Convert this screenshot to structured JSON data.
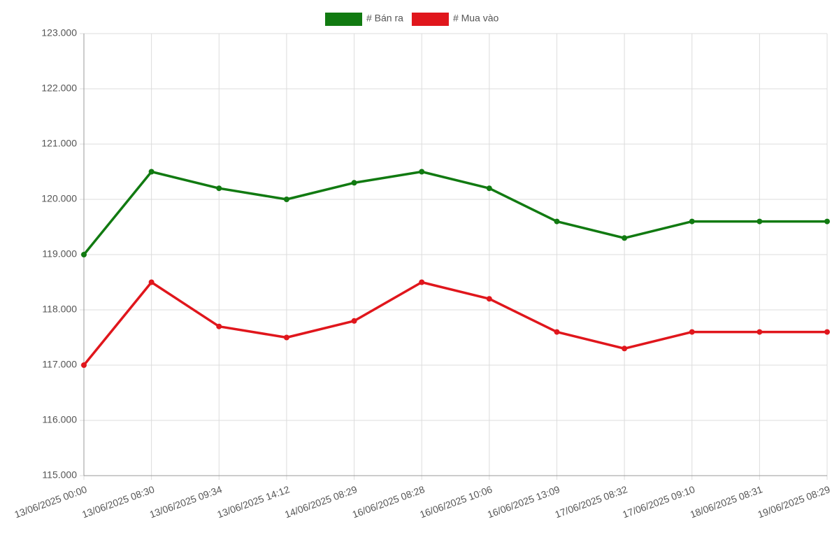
{
  "chart_data": {
    "type": "line",
    "categories": [
      "13/06/2025 00:00",
      "13/06/2025 08:30",
      "13/06/2025 09:34",
      "13/06/2025 14:12",
      "14/06/2025 08:29",
      "16/06/2025 08:28",
      "16/06/2025 10:06",
      "16/06/2025 13:09",
      "17/06/2025 08:32",
      "17/06/2025 09:10",
      "18/06/2025 08:31",
      "19/06/2025 08:29"
    ],
    "series": [
      {
        "name": "# Bán ra",
        "color": "#117a11",
        "values": [
          119000,
          120500,
          120200,
          120000,
          120300,
          120500,
          120200,
          119600,
          119300,
          119600,
          119600,
          119600
        ]
      },
      {
        "name": "# Mua vào",
        "color": "#e0161c",
        "values": [
          117000,
          118500,
          117700,
          117500,
          117800,
          118500,
          118200,
          117600,
          117300,
          117600,
          117600,
          117600
        ]
      }
    ],
    "ylim": [
      115000,
      123000
    ],
    "yticks": [
      {
        "value": 115000,
        "label": "115.000"
      },
      {
        "value": 116000,
        "label": "116.000"
      },
      {
        "value": 117000,
        "label": "117.000"
      },
      {
        "value": 118000,
        "label": "118.000"
      },
      {
        "value": 119000,
        "label": "119.000"
      },
      {
        "value": 120000,
        "label": "120.000"
      },
      {
        "value": 121000,
        "label": "121.000"
      },
      {
        "value": 122000,
        "label": "122.000"
      },
      {
        "value": 123000,
        "label": "123.000"
      }
    ],
    "grid": true,
    "legend": "top"
  }
}
